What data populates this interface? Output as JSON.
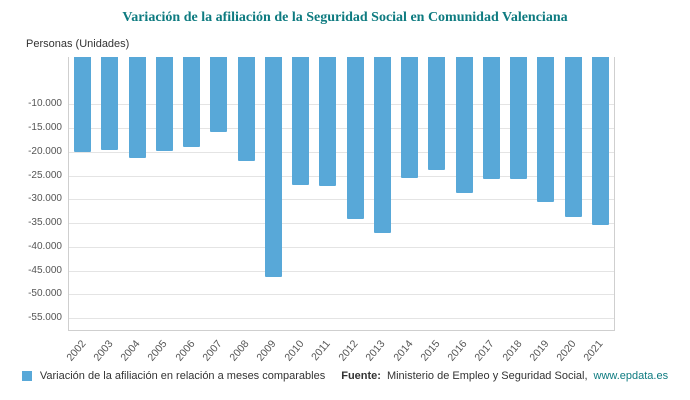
{
  "header": {
    "title": "Variación de la afiliación de la Seguridad Social en Comunidad Valenciana"
  },
  "chart_data": {
    "type": "bar",
    "title": "Variación de la afiliación de la Seguridad Social en Comunidad Valenciana",
    "xlabel": "",
    "ylabel": "Personas (Unidades)",
    "categories": [
      "2002",
      "2003",
      "2004",
      "2005",
      "2006",
      "2007",
      "2008",
      "2009",
      "2010",
      "2011",
      "2012",
      "2013",
      "2014",
      "2015",
      "2016",
      "2017",
      "2018",
      "2019",
      "2020",
      "2021"
    ],
    "values": [
      -20000,
      -19500,
      -21200,
      -19800,
      -19000,
      -15800,
      -22000,
      -46300,
      -27000,
      -27200,
      -34200,
      -37000,
      -25500,
      -23700,
      -28700,
      -25700,
      -25800,
      -30500,
      -33700,
      -35300
    ],
    "ylim": [
      0,
      -57500
    ],
    "yticks": [
      {
        "value": -10000,
        "label": "-10.000"
      },
      {
        "value": -15000,
        "label": "-15.000"
      },
      {
        "value": -20000,
        "label": "-20.000"
      },
      {
        "value": -25000,
        "label": "-25.000"
      },
      {
        "value": -30000,
        "label": "-30.000"
      },
      {
        "value": -35000,
        "label": "-35.000"
      },
      {
        "value": -40000,
        "label": "-40.000"
      },
      {
        "value": -45000,
        "label": "-45.000"
      },
      {
        "value": -50000,
        "label": "-50.000"
      },
      {
        "value": -55000,
        "label": "-55.000"
      }
    ],
    "grid": true,
    "legend_position": "bottom",
    "bar_color": "#58a8d8"
  },
  "legend": {
    "series_label": "Variación de la afiliación en relación a meses comparables"
  },
  "source": {
    "prefix": "Fuente:",
    "text": "Ministerio de Empleo y Seguridad Social,",
    "link": "www.epdata.es"
  },
  "colors": {
    "accent": "#0e7b80",
    "bar": "#58a8d8",
    "grid": "#e4e4e4",
    "axis": "#cfcfcf"
  }
}
